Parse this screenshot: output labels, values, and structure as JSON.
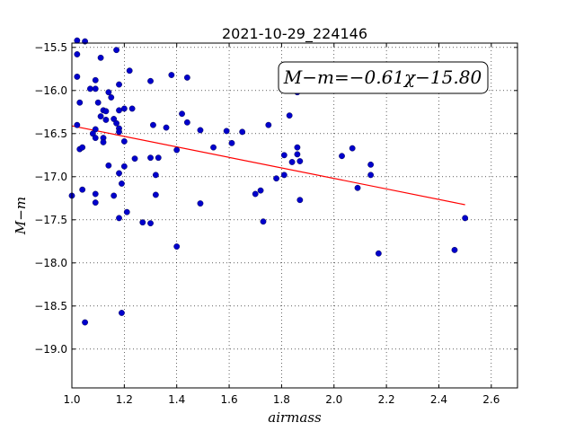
{
  "chart_data": {
    "type": "scatter",
    "title": "2021-10-29_224146",
    "xlabel": "airmass",
    "ylabel": "M−m",
    "xlim": [
      1.0,
      2.7
    ],
    "ylim": [
      -19.45,
      -15.45
    ],
    "y_inverted": true,
    "grid": true,
    "x_ticks": [
      1.0,
      1.2,
      1.4,
      1.6,
      1.8,
      2.0,
      2.2,
      2.4,
      2.6
    ],
    "x_tick_labels": [
      "1.0",
      "1.2",
      "1.4",
      "1.6",
      "1.8",
      "2.0",
      "2.2",
      "2.4",
      "2.6"
    ],
    "y_ticks": [
      -15.5,
      -16.0,
      -16.5,
      -17.0,
      -17.5,
      -18.0,
      -18.5,
      -19.0
    ],
    "y_tick_labels": [
      "−15.5",
      "−16.0",
      "−16.5",
      "−17.0",
      "−17.5",
      "−18.0",
      "−18.5",
      "−19.0"
    ],
    "annotation": "M−m=−0.61χ−15.80",
    "marker_color": "#0000cc",
    "fit_color": "#ff0000",
    "fit_line": {
      "slope": -0.61,
      "intercept": -15.8,
      "x_range": [
        1.0,
        2.5
      ]
    },
    "points": [
      [
        1.02,
        -15.42
      ],
      [
        1.05,
        -15.43
      ],
      [
        1.02,
        -15.58
      ],
      [
        1.11,
        -15.62
      ],
      [
        1.17,
        -15.53
      ],
      [
        1.02,
        -15.84
      ],
      [
        1.09,
        -15.88
      ],
      [
        1.07,
        -15.98
      ],
      [
        1.09,
        -15.98
      ],
      [
        1.22,
        -15.77
      ],
      [
        1.18,
        -15.93
      ],
      [
        1.3,
        -15.89
      ],
      [
        1.38,
        -15.82
      ],
      [
        1.44,
        -15.85
      ],
      [
        1.86,
        -16.02
      ],
      [
        1.03,
        -16.14
      ],
      [
        1.1,
        -16.14
      ],
      [
        1.14,
        -16.02
      ],
      [
        1.15,
        -16.08
      ],
      [
        1.12,
        -16.23
      ],
      [
        1.13,
        -16.24
      ],
      [
        1.11,
        -16.3
      ],
      [
        1.18,
        -16.23
      ],
      [
        1.2,
        -16.21
      ],
      [
        1.23,
        -16.21
      ],
      [
        1.42,
        -16.27
      ],
      [
        1.83,
        -16.29
      ],
      [
        1.13,
        -16.34
      ],
      [
        1.16,
        -16.33
      ],
      [
        1.17,
        -16.38
      ],
      [
        1.02,
        -16.4
      ],
      [
        1.09,
        -16.45
      ],
      [
        1.18,
        -16.44
      ],
      [
        1.18,
        -16.48
      ],
      [
        1.31,
        -16.4
      ],
      [
        1.36,
        -16.43
      ],
      [
        1.44,
        -16.37
      ],
      [
        1.49,
        -16.46
      ],
      [
        1.59,
        -16.47
      ],
      [
        1.65,
        -16.48
      ],
      [
        1.75,
        -16.4
      ],
      [
        1.08,
        -16.5
      ],
      [
        1.09,
        -16.55
      ],
      [
        1.12,
        -16.55
      ],
      [
        1.12,
        -16.6
      ],
      [
        1.2,
        -16.59
      ],
      [
        1.03,
        -16.68
      ],
      [
        1.04,
        -16.66
      ],
      [
        1.54,
        -16.66
      ],
      [
        1.61,
        -16.61
      ],
      [
        1.86,
        -16.66
      ],
      [
        2.07,
        -16.67
      ],
      [
        1.24,
        -16.79
      ],
      [
        1.3,
        -16.78
      ],
      [
        1.33,
        -16.78
      ],
      [
        1.4,
        -16.69
      ],
      [
        1.81,
        -16.75
      ],
      [
        1.86,
        -16.74
      ],
      [
        1.84,
        -16.83
      ],
      [
        1.87,
        -16.82
      ],
      [
        2.03,
        -16.76
      ],
      [
        1.14,
        -16.87
      ],
      [
        1.2,
        -16.88
      ],
      [
        1.18,
        -16.96
      ],
      [
        1.32,
        -16.98
      ],
      [
        1.78,
        -17.02
      ],
      [
        1.81,
        -16.98
      ],
      [
        2.14,
        -16.86
      ],
      [
        2.14,
        -16.98
      ],
      [
        1.19,
        -17.08
      ],
      [
        1.04,
        -17.15
      ],
      [
        1.0,
        -17.22
      ],
      [
        1.09,
        -17.2
      ],
      [
        1.16,
        -17.22
      ],
      [
        1.32,
        -17.21
      ],
      [
        1.7,
        -17.2
      ],
      [
        1.72,
        -17.16
      ],
      [
        2.09,
        -17.13
      ],
      [
        1.09,
        -17.3
      ],
      [
        1.49,
        -17.31
      ],
      [
        1.87,
        -17.27
      ],
      [
        1.21,
        -17.41
      ],
      [
        1.18,
        -17.48
      ],
      [
        1.27,
        -17.53
      ],
      [
        1.3,
        -17.54
      ],
      [
        1.73,
        -17.52
      ],
      [
        2.5,
        -17.48
      ],
      [
        1.4,
        -17.81
      ],
      [
        2.17,
        -17.89
      ],
      [
        2.46,
        -17.85
      ],
      [
        1.19,
        -18.58
      ],
      [
        1.05,
        -18.69
      ]
    ]
  }
}
